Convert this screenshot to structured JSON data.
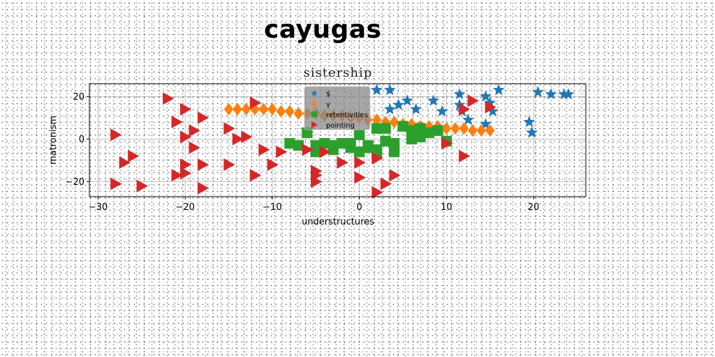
{
  "figure_title": "cayugas",
  "chart_data": {
    "type": "scatter",
    "title": "sistership",
    "xlabel": "understructures",
    "ylabel": "matronism",
    "xlim": [
      -31,
      26
    ],
    "ylim": [
      -27,
      26
    ],
    "xticks": [
      -30,
      -20,
      -10,
      0,
      10,
      20
    ],
    "yticks": [
      -20,
      0,
      20
    ],
    "grid": true,
    "legend_position": "top-center",
    "series": [
      {
        "name": "$",
        "marker": "star",
        "color": "#1f77b4",
        "points": [
          [
            2,
            23
          ],
          [
            3.5,
            23
          ],
          [
            5.5,
            18
          ],
          [
            4.5,
            16
          ],
          [
            3.5,
            14
          ],
          [
            6.5,
            14
          ],
          [
            8.5,
            18
          ],
          [
            9.5,
            13
          ],
          [
            11.5,
            21
          ],
          [
            11.5,
            16
          ],
          [
            11.8,
            13
          ],
          [
            12.5,
            9
          ],
          [
            14.5,
            20
          ],
          [
            15,
            17
          ],
          [
            15.3,
            13
          ],
          [
            16,
            23
          ],
          [
            14.5,
            7
          ],
          [
            19.5,
            8
          ],
          [
            19.8,
            3
          ],
          [
            20.5,
            22
          ],
          [
            22,
            21
          ],
          [
            23.5,
            21
          ],
          [
            24,
            21
          ]
        ]
      },
      {
        "name": "γ",
        "marker": "diamond",
        "color": "#ff7f0e",
        "points": [
          [
            -15,
            14
          ],
          [
            -14,
            14
          ],
          [
            -13,
            14
          ],
          [
            -12,
            14
          ],
          [
            -11,
            14
          ],
          [
            -10,
            14
          ],
          [
            -9,
            13
          ],
          [
            -8,
            13
          ],
          [
            -7,
            12
          ],
          [
            -6,
            12
          ],
          [
            -5,
            12
          ],
          [
            -4,
            11
          ],
          [
            -3,
            11
          ],
          [
            -2,
            11
          ],
          [
            -1,
            10
          ],
          [
            0,
            10
          ],
          [
            1,
            9
          ],
          [
            2,
            9
          ],
          [
            3,
            8
          ],
          [
            4,
            8
          ],
          [
            5,
            7
          ],
          [
            6,
            7
          ],
          [
            7,
            6
          ],
          [
            8,
            6
          ],
          [
            9,
            6
          ],
          [
            10,
            5
          ],
          [
            11,
            5
          ],
          [
            12,
            5
          ],
          [
            13,
            4
          ],
          [
            14,
            4
          ],
          [
            15,
            4
          ]
        ]
      },
      {
        "name": "retentivities",
        "marker": "square",
        "color": "#2ca02c",
        "points": [
          [
            -8,
            -2
          ],
          [
            -7,
            -3
          ],
          [
            -6,
            3
          ],
          [
            -5,
            -3
          ],
          [
            -4,
            -2
          ],
          [
            -3,
            -3
          ],
          [
            -2,
            -2
          ],
          [
            -1,
            -2
          ],
          [
            -1,
            -4
          ],
          [
            0,
            2
          ],
          [
            1,
            -3
          ],
          [
            1,
            -4
          ],
          [
            2,
            5
          ],
          [
            2,
            -5
          ],
          [
            3,
            -1
          ],
          [
            3,
            5
          ],
          [
            4,
            -2
          ],
          [
            4,
            -6
          ],
          [
            5,
            6
          ],
          [
            6,
            0
          ],
          [
            6,
            4
          ],
          [
            7,
            5
          ],
          [
            8,
            3
          ],
          [
            9,
            4
          ],
          [
            10,
            -1
          ],
          [
            -5,
            -6
          ],
          [
            -3,
            -5
          ],
          [
            0,
            -6
          ],
          [
            2,
            -7
          ],
          [
            4,
            -4
          ],
          [
            7,
            1
          ]
        ]
      },
      {
        "name": "pointing",
        "marker": "triangle-right",
        "color": "#d62728",
        "points": [
          [
            -28,
            2
          ],
          [
            -27,
            -11
          ],
          [
            -26,
            -8
          ],
          [
            -28,
            -21
          ],
          [
            -25,
            -22
          ],
          [
            -22,
            19
          ],
          [
            -21,
            8
          ],
          [
            -20,
            14
          ],
          [
            -20,
            1
          ],
          [
            -19,
            4
          ],
          [
            -19,
            -4
          ],
          [
            -20,
            -12
          ],
          [
            -21,
            -17
          ],
          [
            -20,
            -16
          ],
          [
            -18,
            10
          ],
          [
            -18,
            -12
          ],
          [
            -18,
            -23
          ],
          [
            -15,
            -12
          ],
          [
            -15,
            5
          ],
          [
            -14,
            0
          ],
          [
            -13,
            1
          ],
          [
            -12,
            17
          ],
          [
            -12,
            -17
          ],
          [
            -11,
            -5
          ],
          [
            -10,
            -12
          ],
          [
            -9,
            -6
          ],
          [
            -6,
            -5
          ],
          [
            -5,
            -15
          ],
          [
            -5,
            -17
          ],
          [
            -5,
            -20
          ],
          [
            -4,
            -6
          ],
          [
            -2,
            -11
          ],
          [
            0,
            -11
          ],
          [
            0,
            -18
          ],
          [
            2,
            -9
          ],
          [
            2,
            -25
          ],
          [
            3,
            -21
          ],
          [
            4,
            -17
          ],
          [
            10,
            -2
          ],
          [
            12,
            -8
          ],
          [
            12,
            14
          ],
          [
            13,
            18
          ],
          [
            15,
            15
          ]
        ]
      }
    ]
  }
}
